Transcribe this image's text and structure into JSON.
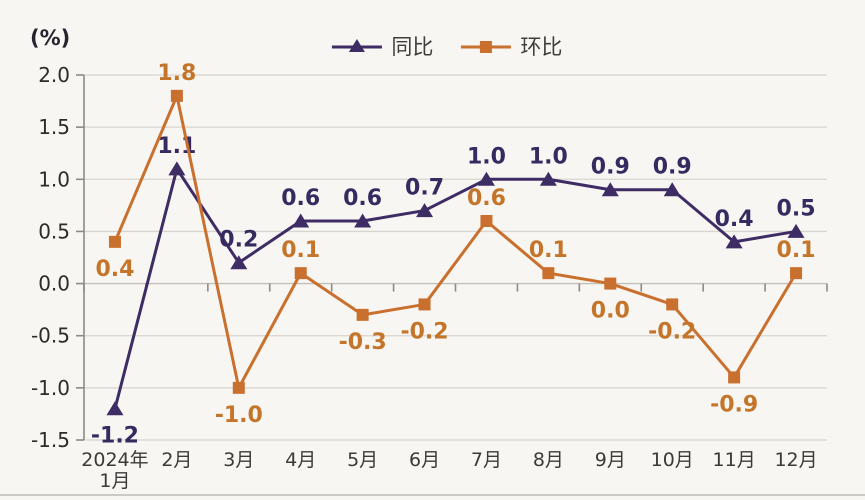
{
  "y_axis_title": "(%)",
  "legend": {
    "items": [
      {
        "label": "同比"
      },
      {
        "label": "环比"
      }
    ]
  },
  "colors": {
    "background": "#f8f6f2",
    "grid": "#d8d4cf",
    "axis": "#8e8a84",
    "zero_line": "#c2beb8",
    "yoy": "#3e2c64",
    "yoy_label": "#372a60",
    "mom": "#c9702e",
    "mom_label": "#c4752a",
    "ytick_text": "#2e2c29",
    "xtick_text": "#3b3a38"
  },
  "chart_data": {
    "type": "line",
    "title": "",
    "ylabel": "(%)",
    "categories": [
      "2024年\n1月",
      "2月",
      "3月",
      "4月",
      "5月",
      "6月",
      "7月",
      "8月",
      "9月",
      "10月",
      "11月",
      "12月"
    ],
    "series": [
      {
        "name": "同比",
        "marker": "triangle",
        "color": "#3e2c64",
        "values": [
          -1.2,
          1.1,
          0.2,
          0.6,
          0.6,
          0.7,
          1.0,
          1.0,
          0.9,
          0.9,
          0.4,
          0.5
        ],
        "label_positions": [
          "below",
          "above",
          "above",
          "above",
          "above",
          "above",
          "above",
          "above",
          "above",
          "above",
          "above",
          "above"
        ]
      },
      {
        "name": "环比",
        "marker": "square",
        "color": "#c9702e",
        "values": [
          0.4,
          1.8,
          -1.0,
          0.1,
          -0.3,
          -0.2,
          0.6,
          0.1,
          0.0,
          -0.2,
          -0.9,
          0.1
        ],
        "label_positions": [
          "below",
          "above",
          "below",
          "above",
          "below",
          "below",
          "above",
          "above",
          "below",
          "below",
          "below",
          "above"
        ]
      }
    ],
    "ylim": [
      -1.5,
      2.0
    ],
    "ytick_step": 0.5,
    "grid": true,
    "legend_position": "top-center"
  }
}
